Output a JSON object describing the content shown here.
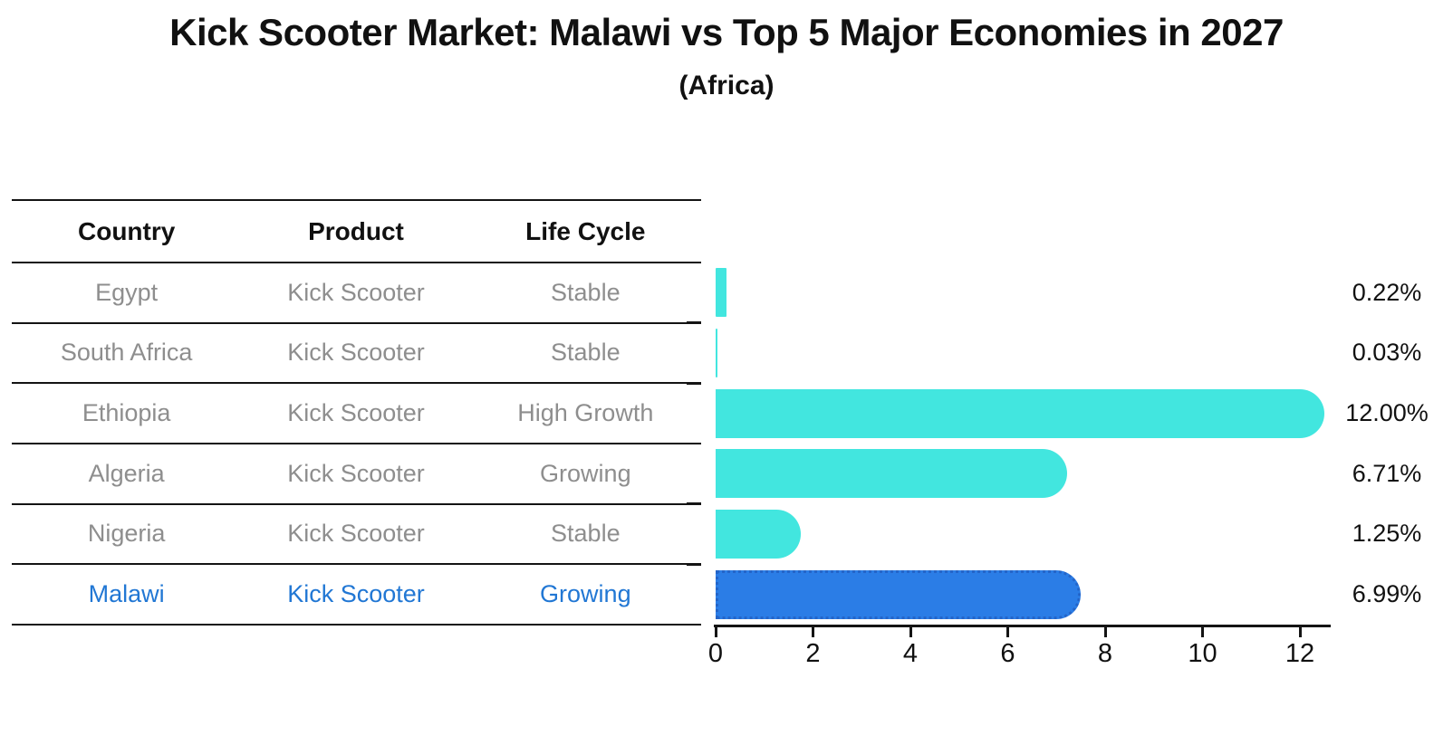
{
  "title": "Kick Scooter Market: Malawi vs Top 5 Major Economies in 2027",
  "subtitle": "(Africa)",
  "table": {
    "headers": [
      "Country",
      "Product",
      "Life Cycle"
    ],
    "rows": [
      {
        "country": "Egypt",
        "product": "Kick Scooter",
        "life_cycle": "Stable",
        "highlight": false
      },
      {
        "country": "South Africa",
        "product": "Kick Scooter",
        "life_cycle": "Stable",
        "highlight": false
      },
      {
        "country": "Ethiopia",
        "product": "Kick Scooter",
        "life_cycle": "High Growth",
        "highlight": false
      },
      {
        "country": "Algeria",
        "product": "Kick Scooter",
        "life_cycle": "Growing",
        "highlight": false
      },
      {
        "country": "Nigeria",
        "product": "Kick Scooter",
        "life_cycle": "Stable",
        "highlight": true
      }
    ],
    "highlight_row": {
      "country": "Malawi",
      "product": "Kick Scooter",
      "life_cycle": "Growing"
    }
  },
  "chart_data": {
    "type": "bar",
    "orientation": "horizontal",
    "title": "Kick Scooter Market: Malawi vs Top 5 Major Economies in 2027",
    "subtitle": "(Africa)",
    "categories": [
      "Egypt",
      "South Africa",
      "Ethiopia",
      "Algeria",
      "Nigeria",
      "Malawi"
    ],
    "values": [
      0.22,
      0.03,
      12.0,
      6.71,
      1.25,
      6.99
    ],
    "value_labels": [
      "0.22%",
      "0.03%",
      "12.00%",
      "6.71%",
      "1.25%",
      "6.99%"
    ],
    "x_ticks": [
      0,
      2,
      4,
      6,
      8,
      10,
      12
    ],
    "xlim": [
      0,
      12.6
    ],
    "grid": false,
    "legend": false,
    "bar_color": "#42E6DF",
    "highlight_index": 5,
    "highlight_color": "#2B7DE6",
    "highlight_border_color": "#2465C9",
    "highlight_text_color": "#2177D4",
    "text_color": "#111111",
    "muted_text_color": "#8E8E8E"
  }
}
